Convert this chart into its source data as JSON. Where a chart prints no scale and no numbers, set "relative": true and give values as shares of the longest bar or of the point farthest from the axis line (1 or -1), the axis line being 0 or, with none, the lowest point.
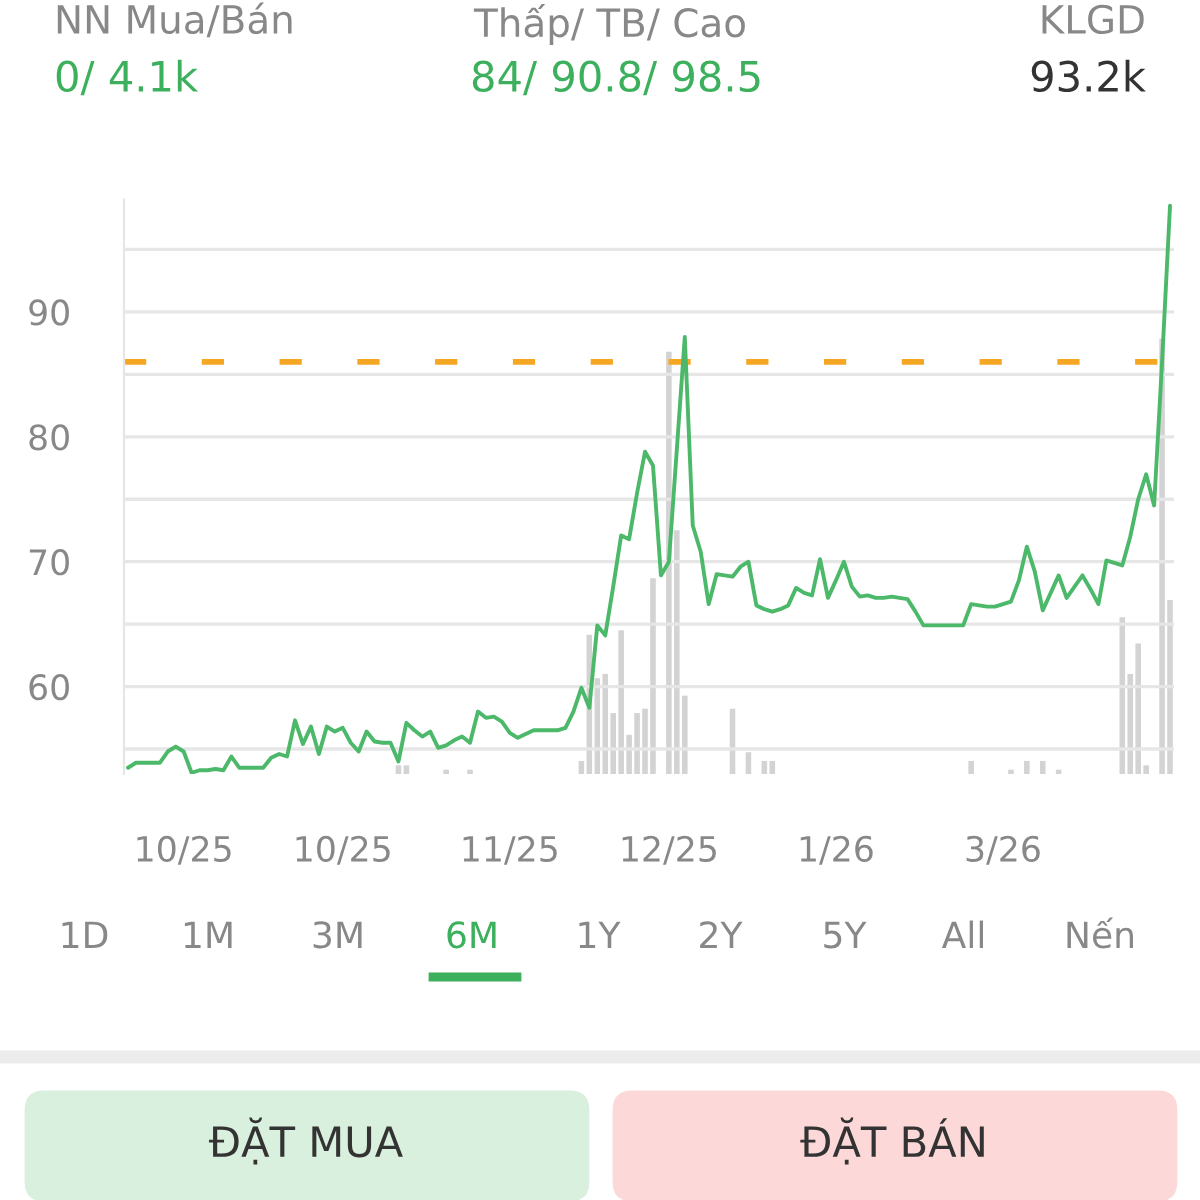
{
  "chart_data": [
    {
      "type": "line",
      "annotations": [
        "NN Mua/Bán",
        "0/ 4.1k",
        "Thấp/ TB/ Cao",
        "84/ 90.8/ 98.5",
        "KLGD",
        "93.2k",
        "1D",
        "1M",
        "3M",
        "6M",
        "1Y",
        "2Y",
        "5Y",
        "All",
        "Nến",
        "ĐẶT MUA",
        "ĐẶT BÁN"
      ],
      "categories": [
        null,
        null,
        null,
        null,
        null,
        null,
        null,
        "10/25",
        null,
        null,
        null,
        null,
        null,
        null,
        null,
        null,
        null,
        null,
        null,
        null,
        null,
        null,
        null,
        null,
        null,
        null,
        null,
        "10/25",
        null,
        null,
        null,
        null,
        null,
        null,
        null,
        null,
        null,
        null,
        null,
        null,
        null,
        null,
        null,
        null,
        null,
        null,
        null,
        null,
        "11/25",
        null,
        null,
        null,
        null,
        null,
        null,
        null,
        null,
        null,
        null,
        null,
        null,
        null,
        null,
        null,
        null,
        null,
        null,
        null,
        "12/25",
        null,
        null,
        null,
        null,
        null,
        null,
        null,
        null,
        null,
        null,
        null,
        null,
        null,
        null,
        null,
        null,
        null,
        null,
        null,
        null,
        "1/26",
        null,
        null,
        null,
        null,
        null,
        null,
        null,
        null,
        null,
        null,
        null,
        null,
        null,
        null,
        null,
        null,
        null,
        null,
        null,
        null,
        "3/26",
        null,
        null,
        null,
        null,
        null,
        null,
        null,
        null,
        null,
        null,
        null,
        null,
        null,
        null,
        null,
        null,
        null,
        null,
        null,
        null,
        null
      ],
      "ylim": [
        53,
        99
      ],
      "yticks": [
        {
          "value": 55,
          "label": null
        },
        60,
        {
          "value": 65,
          "label": null
        },
        70,
        {
          "value": 75,
          "label": null
        },
        80,
        {
          "value": 85,
          "label": null
        },
        90,
        {
          "value": 95,
          "label": null
        }
      ],
      "grid": "y",
      "ref_lines": [
        {
          "axis": "y",
          "value": 86,
          "label": null,
          "color": "#f5a623",
          "line_style": "dashed"
        }
      ],
      "series": [
        {
          "color": "#4cb86a",
          "values": [
            53.5,
            53.9,
            53.9,
            53.9,
            53.9,
            54.8,
            55.2,
            54.8,
            53.1,
            53.3,
            53.3,
            53.4,
            53.3,
            54.4,
            53.5,
            53.5,
            53.5,
            53.5,
            54.3,
            54.6,
            54.4,
            57.3,
            55.4,
            56.8,
            54.6,
            56.8,
            56.4,
            56.7,
            55.5,
            54.8,
            56.4,
            55.6,
            55.5,
            55.5,
            54.0,
            57.1,
            56.5,
            56.0,
            56.4,
            55.1,
            55.3,
            55.7,
            56.0,
            55.5,
            58.0,
            57.5,
            57.6,
            57.2,
            56.3,
            55.9,
            56.2,
            56.5,
            56.5,
            56.5,
            56.5,
            56.7,
            58.0,
            59.9,
            58.3,
            64.9,
            64.1,
            68.0,
            72.1,
            71.8,
            75.5,
            78.8,
            77.7,
            68.9,
            70.0,
            79.0,
            88.0,
            72.9,
            70.8,
            66.6,
            69.0,
            68.9,
            68.8,
            69.6,
            70.0,
            66.5,
            66.2,
            66.0,
            66.2,
            66.5,
            67.9,
            67.5,
            67.3,
            70.2,
            67.1,
            68.5,
            70.0,
            68.0,
            67.2,
            67.3,
            67.1,
            67.1,
            67.2,
            67.1,
            67.0,
            66.0,
            64.9,
            64.9,
            64.9,
            64.9,
            64.9,
            64.9,
            66.6,
            66.5,
            66.4,
            66.4,
            66.6,
            66.8,
            68.5,
            71.2,
            69.2,
            66.1,
            67.5,
            68.9,
            67.1,
            68.0,
            68.9,
            67.8,
            66.6,
            70.1,
            69.9,
            69.7,
            72.0,
            75.0,
            77.0,
            74.5,
            86.0,
            98.5
          ]
        }
      ]
    },
    {
      "type": "bar",
      "relative": true,
      "categories": [
        null,
        null,
        null,
        null,
        null,
        null,
        null,
        null,
        null,
        null,
        null,
        null,
        null,
        null,
        null,
        null,
        null,
        null,
        null,
        null,
        null,
        null,
        null,
        null,
        null,
        null,
        null,
        null,
        null,
        null,
        null,
        null,
        null,
        null,
        null,
        null,
        null,
        null,
        null,
        null,
        null,
        null,
        null,
        null,
        null,
        null,
        null,
        null,
        null,
        null,
        null,
        null,
        null,
        null,
        null,
        null,
        null,
        null,
        null,
        null,
        null,
        null,
        null,
        null,
        null,
        null,
        null,
        null,
        null,
        null,
        null,
        null,
        null,
        null,
        null,
        null,
        null,
        null,
        null,
        null,
        null,
        null,
        null,
        null,
        null,
        null,
        null,
        null,
        null,
        null,
        null,
        null,
        null,
        null,
        null,
        null,
        null,
        null,
        null,
        null,
        null,
        null,
        null,
        null,
        null,
        null,
        null,
        null,
        null,
        null,
        null,
        null,
        null,
        null,
        null,
        null,
        null,
        null,
        null,
        null,
        null,
        null,
        null,
        null,
        null,
        null,
        null,
        null,
        null,
        null,
        null,
        null
      ],
      "series": [
        {
          "color": "#d3d3d3",
          "values": [
            null,
            null,
            null,
            null,
            null,
            null,
            null,
            null,
            null,
            null,
            null,
            null,
            null,
            null,
            null,
            null,
            null,
            null,
            null,
            null,
            null,
            null,
            null,
            null,
            null,
            null,
            null,
            null,
            null,
            null,
            null,
            null,
            null,
            null,
            0.02,
            0.02,
            null,
            null,
            null,
            null,
            0.01,
            null,
            null,
            0.01,
            null,
            null,
            null,
            null,
            null,
            null,
            null,
            null,
            null,
            null,
            null,
            null,
            null,
            0.03,
            0.32,
            0.22,
            0.23,
            0.14,
            0.33,
            0.09,
            0.14,
            0.15,
            0.45,
            null,
            0.97,
            0.56,
            0.18,
            null,
            null,
            null,
            null,
            null,
            0.15,
            null,
            0.05,
            null,
            0.03,
            0.03,
            null,
            null,
            null,
            null,
            null,
            null,
            null,
            null,
            null,
            null,
            null,
            null,
            null,
            null,
            null,
            null,
            null,
            null,
            null,
            null,
            null,
            null,
            null,
            null,
            0.03,
            null,
            null,
            null,
            null,
            0.01,
            null,
            0.03,
            null,
            0.03,
            null,
            0.01,
            null,
            null,
            null,
            null,
            null,
            null,
            null,
            0.36,
            0.23,
            0.3,
            0.02,
            null,
            1.0,
            0.4
          ]
        }
      ]
    }
  ]
}
